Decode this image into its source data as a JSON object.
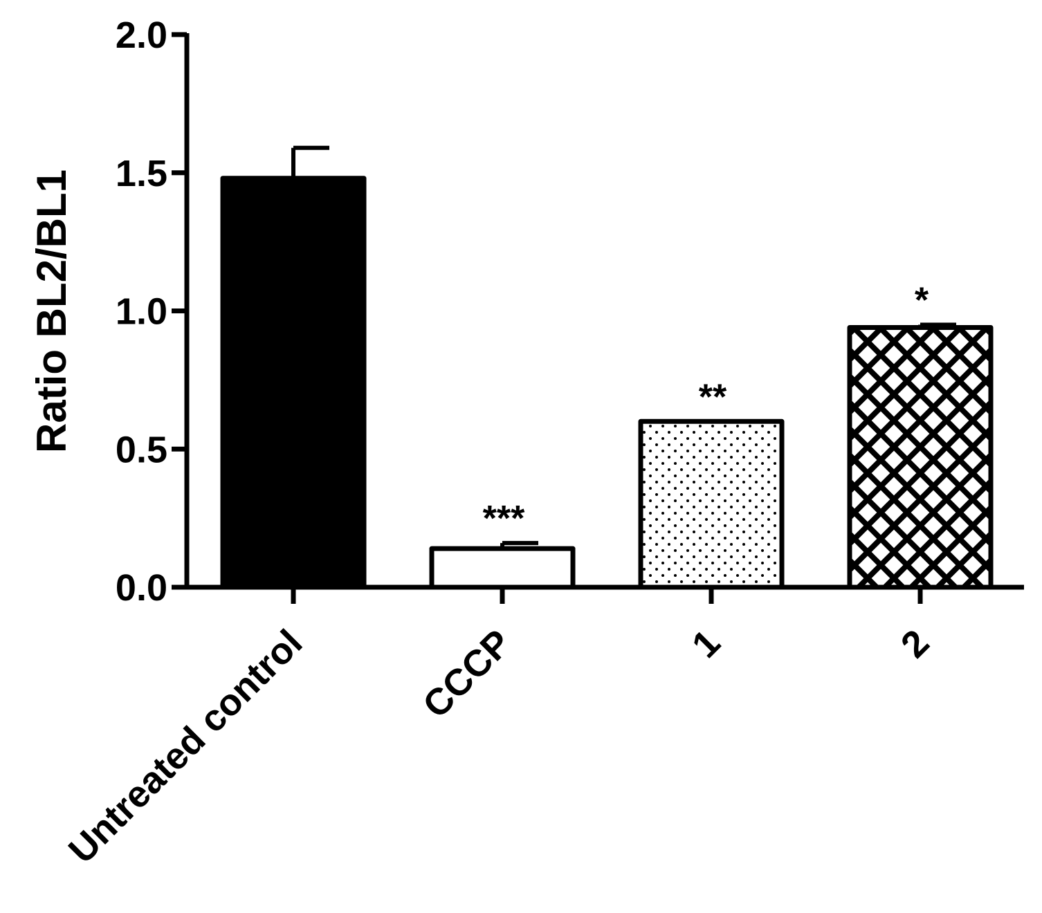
{
  "chart_data": {
    "type": "bar",
    "title": "",
    "xlabel": "",
    "ylabel": "Ratio BL2/BL1",
    "ylim": [
      0,
      2.0
    ],
    "yticks": [
      0.0,
      0.5,
      1.0,
      1.5,
      2.0
    ],
    "ytick_labels": [
      "0.0",
      "0.5",
      "1.0",
      "1.5",
      "2.0"
    ],
    "categories": [
      "Untreated control",
      "CCCP",
      "1",
      "2"
    ],
    "values": [
      1.48,
      0.14,
      0.6,
      0.94
    ],
    "errors": [
      0.11,
      0.02,
      0.0,
      0.01
    ],
    "significance": [
      "",
      "***",
      "**",
      "*"
    ],
    "fills": [
      "solid",
      "none",
      "dots",
      "crosshatch"
    ],
    "grid": false,
    "legend": "none",
    "colors": {
      "bar_stroke": "#000000",
      "bar_fill": "#000000",
      "background": "#ffffff"
    }
  }
}
